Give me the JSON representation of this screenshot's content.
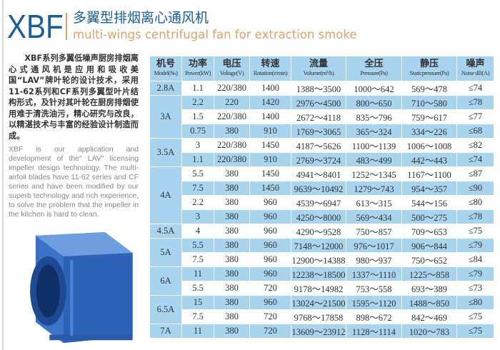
{
  "header": {
    "logo": "XBF",
    "title_cn": "多翼型排烟离心通风机",
    "title_en": "multi-wings centrifugal fan for extraction smoke"
  },
  "description": {
    "cn": "XBF系列多翼低噪声厨房排烟离心式通风机是应用和吸收美国“LAV”牌叶轮的设计技术，采用11-62系列和CF系列多翼型叶片结构形式，及针对其叶轮在厨房排烟使用难于清洗油污，精心研究与改良，以精湛技术与丰富的经验设计制造而成。",
    "en": "XBF is our application and development of the\" LAV\" licensing impeller design technology. The multi-airfoil blades have 11-62 series and CF series and have been modified by our superb technology and rich experience, to solve the problem that the impeller in the kitchen is hard to clean."
  },
  "colors": {
    "brand": "#1a5d97",
    "accent": "#d9a36a",
    "table_blue": "#a8d4f0"
  },
  "table": {
    "columns": [
      {
        "cn": "机号",
        "en": "Model(№)"
      },
      {
        "cn": "功率",
        "en": "Power(kW)"
      },
      {
        "cn": "电压",
        "en": "Voltage(V)"
      },
      {
        "cn": "转速",
        "en": "Rotation(r/min)"
      },
      {
        "cn": "流量",
        "en": "Volume(m³/h)"
      },
      {
        "cn": "全压",
        "en": "Pressure(Pa)"
      },
      {
        "cn": "静压",
        "en": "Staticpressure(Pa)"
      },
      {
        "cn": "噪声",
        "en": "Noise dB(A)"
      }
    ],
    "groups": [
      {
        "model": "2.8A",
        "rows": [
          [
            "1.1",
            "220/380",
            "1400",
            "1388～3500",
            "1000～642",
            "569～478",
            "≤74"
          ]
        ]
      },
      {
        "model": "3A",
        "rows": [
          [
            "2.2",
            "220",
            "1420",
            "2976～4500",
            "800～650",
            "710～580",
            "≤78"
          ],
          [
            "1.5",
            "220/380",
            "1400",
            "2672～4118",
            "835～796",
            "759～617",
            "≤77"
          ],
          [
            "0.75",
            "380",
            "910",
            "1769～3065",
            "365～324",
            "334～226",
            "≤68"
          ]
        ]
      },
      {
        "model": "3.5A",
        "rows": [
          [
            "3",
            "220/380",
            "1450",
            "4187～5626",
            "1100～1139",
            "1006～1008",
            "≤82"
          ],
          [
            "1.1",
            "220/380",
            "910",
            "2769～3724",
            "483～499",
            "442～443",
            "≤74"
          ]
        ]
      },
      {
        "model": "4A",
        "rows": [
          [
            "5.5",
            "380",
            "1450",
            "4941～8401",
            "1252～1345",
            "1167～1100",
            "≤87"
          ],
          [
            "7.5",
            "380",
            "1450",
            "9639～10492",
            "1279～743",
            "954～357",
            "≤90"
          ],
          [
            "2.2",
            "380",
            "960",
            "4539～6947",
            "613～315",
            "544～156",
            "≤80"
          ],
          [
            "3",
            "380",
            "960",
            "4250～8000",
            "569～434",
            "500～275",
            "≤78"
          ]
        ]
      },
      {
        "model": "4.5A",
        "rows": [
          [
            "4",
            "380",
            "960",
            "4290～9528",
            "750～857",
            "709～653",
            "≤75"
          ]
        ]
      },
      {
        "model": "5A",
        "rows": [
          [
            "5.5",
            "380",
            "960",
            "7148～12000",
            "976～1017",
            "906～844",
            "≤79"
          ],
          [
            "7.5",
            "380",
            "960",
            "12900～14388",
            "980～937",
            "750～652",
            "≤84"
          ]
        ]
      },
      {
        "model": "6A",
        "rows": [
          [
            "11",
            "380",
            "960",
            "12238～18500",
            "1337～1110",
            "1225～858",
            "≤79"
          ],
          [
            "5.5",
            "380",
            "720",
            "9178～14982",
            "753～558",
            "693～389",
            "≤73"
          ]
        ]
      },
      {
        "model": "6.5A",
        "rows": [
          [
            "15",
            "380",
            "960",
            "13024～21500",
            "1595～1120",
            "1488～850",
            "≤80"
          ],
          [
            "7.5",
            "380",
            "720",
            "9768～17858",
            "898～672",
            "842～469",
            "≤75"
          ]
        ]
      },
      {
        "model": "7A",
        "rows": [
          [
            "11",
            "380",
            "720",
            "13609～23912",
            "1128～1114",
            "1020～783",
            "≤75"
          ]
        ]
      }
    ]
  }
}
